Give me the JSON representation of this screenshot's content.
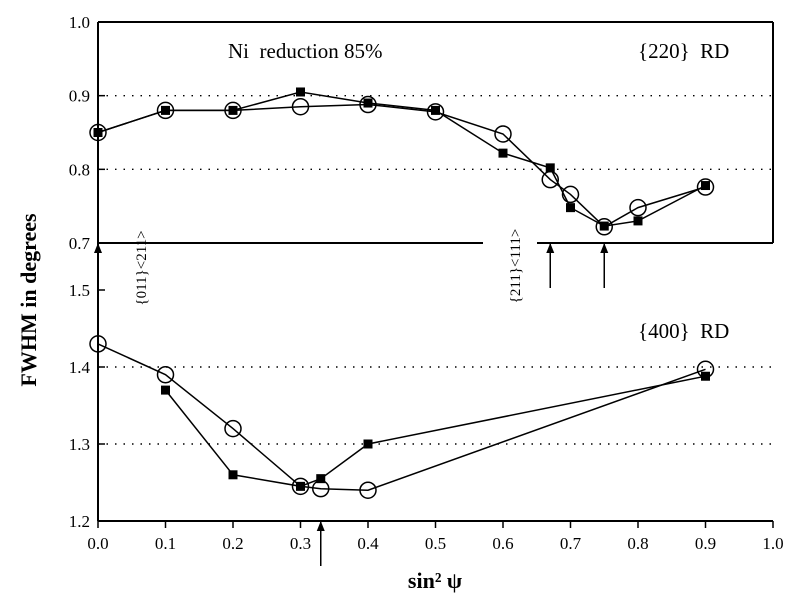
{
  "chart_data": [
    {
      "type": "line",
      "panel": "top",
      "title": "Ni  reduction 85%",
      "subtitle": "{220}  RD",
      "ylabel": "FWHM in degrees",
      "xlabel": "sin² ψ",
      "xlim": [
        0.0,
        1.0
      ],
      "ylim": [
        0.7,
        1.0
      ],
      "y_ticks": [
        "0.7",
        "0.8",
        "0.9",
        "1.0"
      ],
      "grid": "dotted horizontal",
      "series": [
        {
          "marker": "filled-square",
          "x": [
            0.0,
            0.1,
            0.2,
            0.3,
            0.4,
            0.5,
            0.6,
            0.67,
            0.7,
            0.75,
            0.8,
            0.9
          ],
          "y": [
            0.85,
            0.88,
            0.88,
            0.905,
            0.89,
            0.88,
            0.822,
            0.802,
            0.748,
            0.723,
            0.73,
            0.778
          ]
        },
        {
          "marker": "open-circle",
          "x": [
            0.0,
            0.1,
            0.2,
            0.3,
            0.4,
            0.5,
            0.6,
            0.67,
            0.7,
            0.75,
            0.8,
            0.9
          ],
          "y": [
            0.85,
            0.88,
            0.88,
            0.885,
            0.888,
            0.878,
            0.848,
            0.786,
            0.766,
            0.722,
            0.748,
            0.776
          ]
        }
      ],
      "annotations": [
        {
          "text": "{011}<211>",
          "x": 0.0
        },
        {
          "text": "{211}<111>",
          "x": 0.67
        }
      ],
      "arrows_x": [
        0.0,
        0.67,
        0.75
      ]
    },
    {
      "type": "line",
      "panel": "bottom",
      "subtitle": "{400}  RD",
      "xlim": [
        0.0,
        1.0
      ],
      "ylim": [
        1.2,
        1.5
      ],
      "y_ticks": [
        "1.2",
        "1.3",
        "1.4",
        "1.5"
      ],
      "x_ticks": [
        "0.0",
        "0.1",
        "0.2",
        "0.3",
        "0.4",
        "0.5",
        "0.6",
        "0.7",
        "0.8",
        "0.9",
        "1.0"
      ],
      "grid": "dotted horizontal",
      "series": [
        {
          "marker": "filled-square",
          "x": [
            0.1,
            0.2,
            0.3,
            0.33,
            0.4,
            0.9
          ],
          "y": [
            1.37,
            1.26,
            1.245,
            1.255,
            1.3,
            1.388
          ]
        },
        {
          "marker": "open-circle",
          "x": [
            0.0,
            0.1,
            0.2,
            0.3,
            0.33,
            0.4,
            0.9
          ],
          "y": [
            1.43,
            1.39,
            1.32,
            1.245,
            1.242,
            1.24,
            1.397
          ]
        }
      ],
      "arrows_x": [
        0.33
      ]
    }
  ]
}
